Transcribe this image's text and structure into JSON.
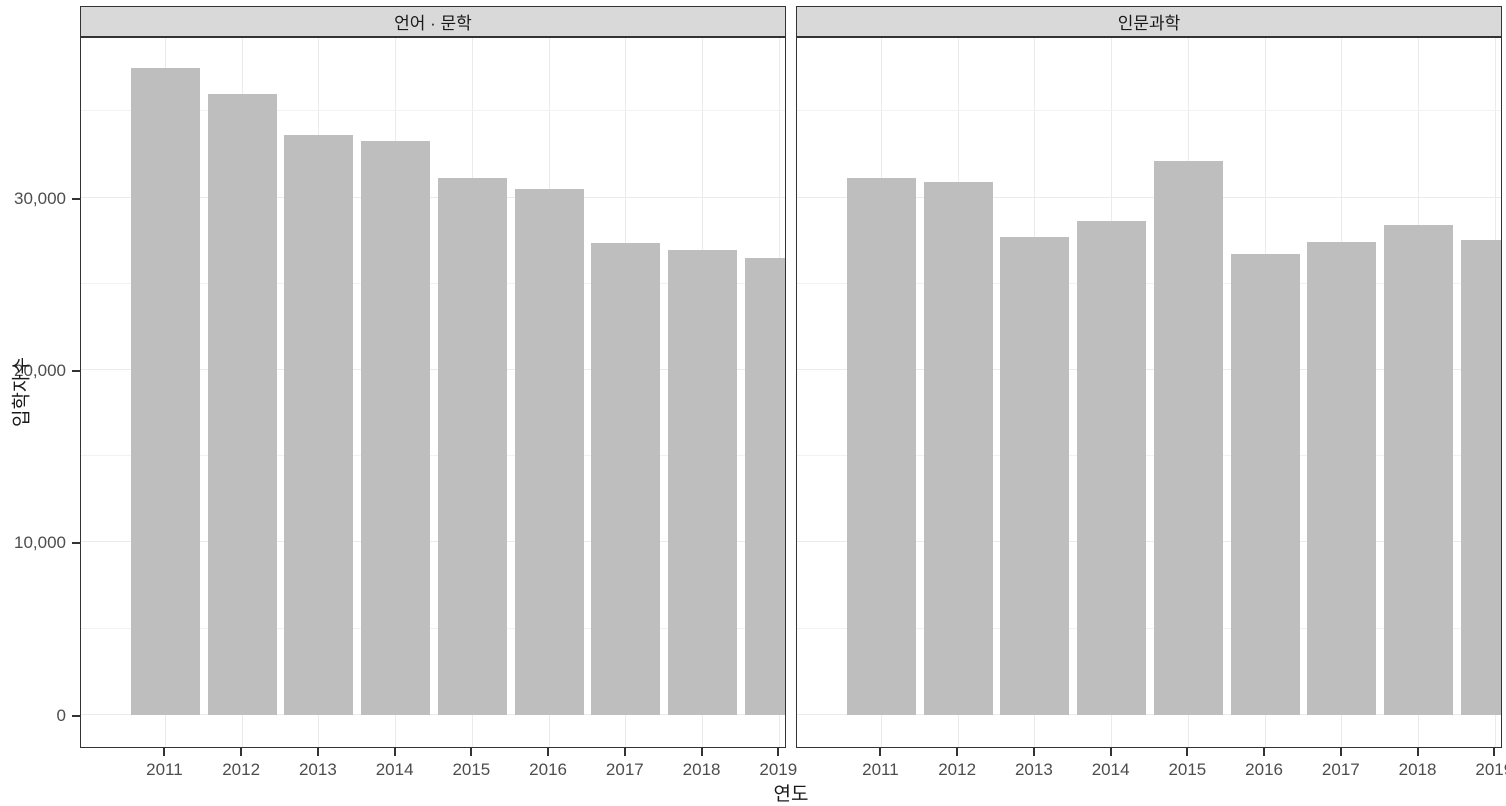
{
  "chart_data": {
    "type": "bar",
    "categories": [
      "2011",
      "2012",
      "2013",
      "2014",
      "2015",
      "2016",
      "2017",
      "2018",
      "2019"
    ],
    "series": [
      {
        "name": "언어 · 문학",
        "values": [
          37500,
          36000,
          33650,
          33300,
          31150,
          30500,
          27350,
          26950,
          26500
        ]
      },
      {
        "name": "인문과학",
        "values": [
          31150,
          30900,
          27700,
          28650,
          32150,
          26700,
          27450,
          28400,
          27550
        ]
      }
    ],
    "xlabel": "연도",
    "ylabel": "입학자수",
    "y_major_ticks": [
      0,
      10000,
      20000,
      30000
    ],
    "y_tick_labels": [
      "0",
      "10,000",
      "20,000",
      "30,000"
    ],
    "y_minor_ticks": [
      5000,
      15000,
      25000,
      35000
    ],
    "ylim": [
      -1875,
      39375
    ],
    "legend": "none",
    "grid": "major-and-minor",
    "facet_layout": "two-panels-horizontal",
    "bar_color": "#BEBEBE"
  },
  "colors": {
    "bar_fill": "#BEBEBE",
    "strip_fill": "#D9D9D9",
    "panel_border": "#333333",
    "grid_major": "#EBEBEB",
    "grid_minor": "#F2F2F2",
    "axis_text": "#4D4D4D",
    "title_text": "#1A1A1A",
    "background": "#FFFFFF"
  }
}
